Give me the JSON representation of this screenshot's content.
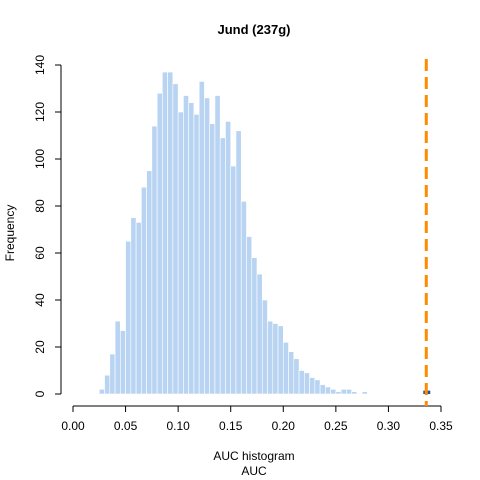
{
  "chart_data": {
    "type": "bar",
    "title": "Jund (237g)",
    "xlabel": "AUC histogram",
    "xlabel2": "AUC",
    "ylabel": "Frequency",
    "xlim": [
      0.0,
      0.35
    ],
    "ylim": [
      0,
      140
    ],
    "xticks": [
      "0.00",
      "0.05",
      "0.10",
      "0.15",
      "0.20",
      "0.25",
      "0.30",
      "0.35"
    ],
    "yticks": [
      "0",
      "20",
      "40",
      "60",
      "80",
      "100",
      "120",
      "140"
    ],
    "bin_start": 0.0,
    "bin_width": 0.005,
    "values": [
      0,
      0,
      0,
      0,
      0,
      2,
      8,
      17,
      31,
      27,
      65,
      75,
      73,
      88,
      95,
      114,
      128,
      137,
      137,
      132,
      120,
      127,
      124,
      119,
      133,
      126,
      115,
      127,
      109,
      116,
      97,
      112,
      82,
      67,
      58,
      51,
      40,
      31,
      30,
      29,
      22,
      18,
      15,
      10,
      9,
      7,
      6,
      4,
      3,
      2,
      1,
      2,
      2,
      1,
      0,
      1,
      0,
      0,
      0,
      0,
      0,
      0,
      0,
      0,
      0,
      0,
      0,
      0,
      0,
      0,
      0
    ],
    "highlight": {
      "x": 0.336,
      "value": 1,
      "color": "#1f4e9c"
    },
    "vline": {
      "x": 0.336,
      "color": "#ff8c00"
    },
    "bar_color": "#b8d4f2"
  }
}
